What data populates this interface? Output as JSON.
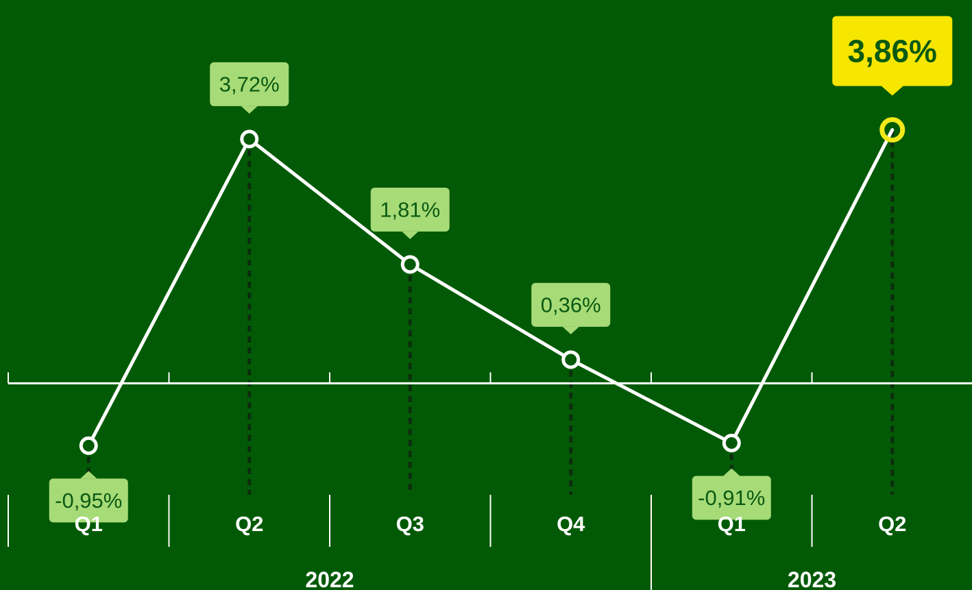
{
  "chart_data": {
    "type": "line",
    "title": "",
    "xlabel": "",
    "ylabel": "",
    "grid": false,
    "ylim": [
      -1.52,
      4.95
    ],
    "categories": [
      "Q1",
      "Q2",
      "Q3",
      "Q4",
      "Q1",
      "Q2"
    ],
    "groups": [
      {
        "label": "2022",
        "span": [
          0,
          3
        ]
      },
      {
        "label": "2023",
        "span": [
          4,
          5
        ]
      }
    ],
    "series": [
      {
        "values": [
          -0.95,
          3.72,
          1.81,
          0.36,
          -0.91,
          3.86
        ]
      }
    ],
    "data_labels": [
      "-0,95%",
      "3,72%",
      "1,81%",
      "0,36%",
      "-0,91%",
      "3,86%"
    ],
    "highlight_index": 5,
    "colors": {
      "background": "#035a06",
      "line": "#ffffff",
      "label_box": "#a6db77",
      "label_text": "#0b5a12",
      "highlight_box": "#f7e600",
      "highlight_ring": "#f2e81a",
      "dotted_guide": "#0d2e0e"
    }
  }
}
